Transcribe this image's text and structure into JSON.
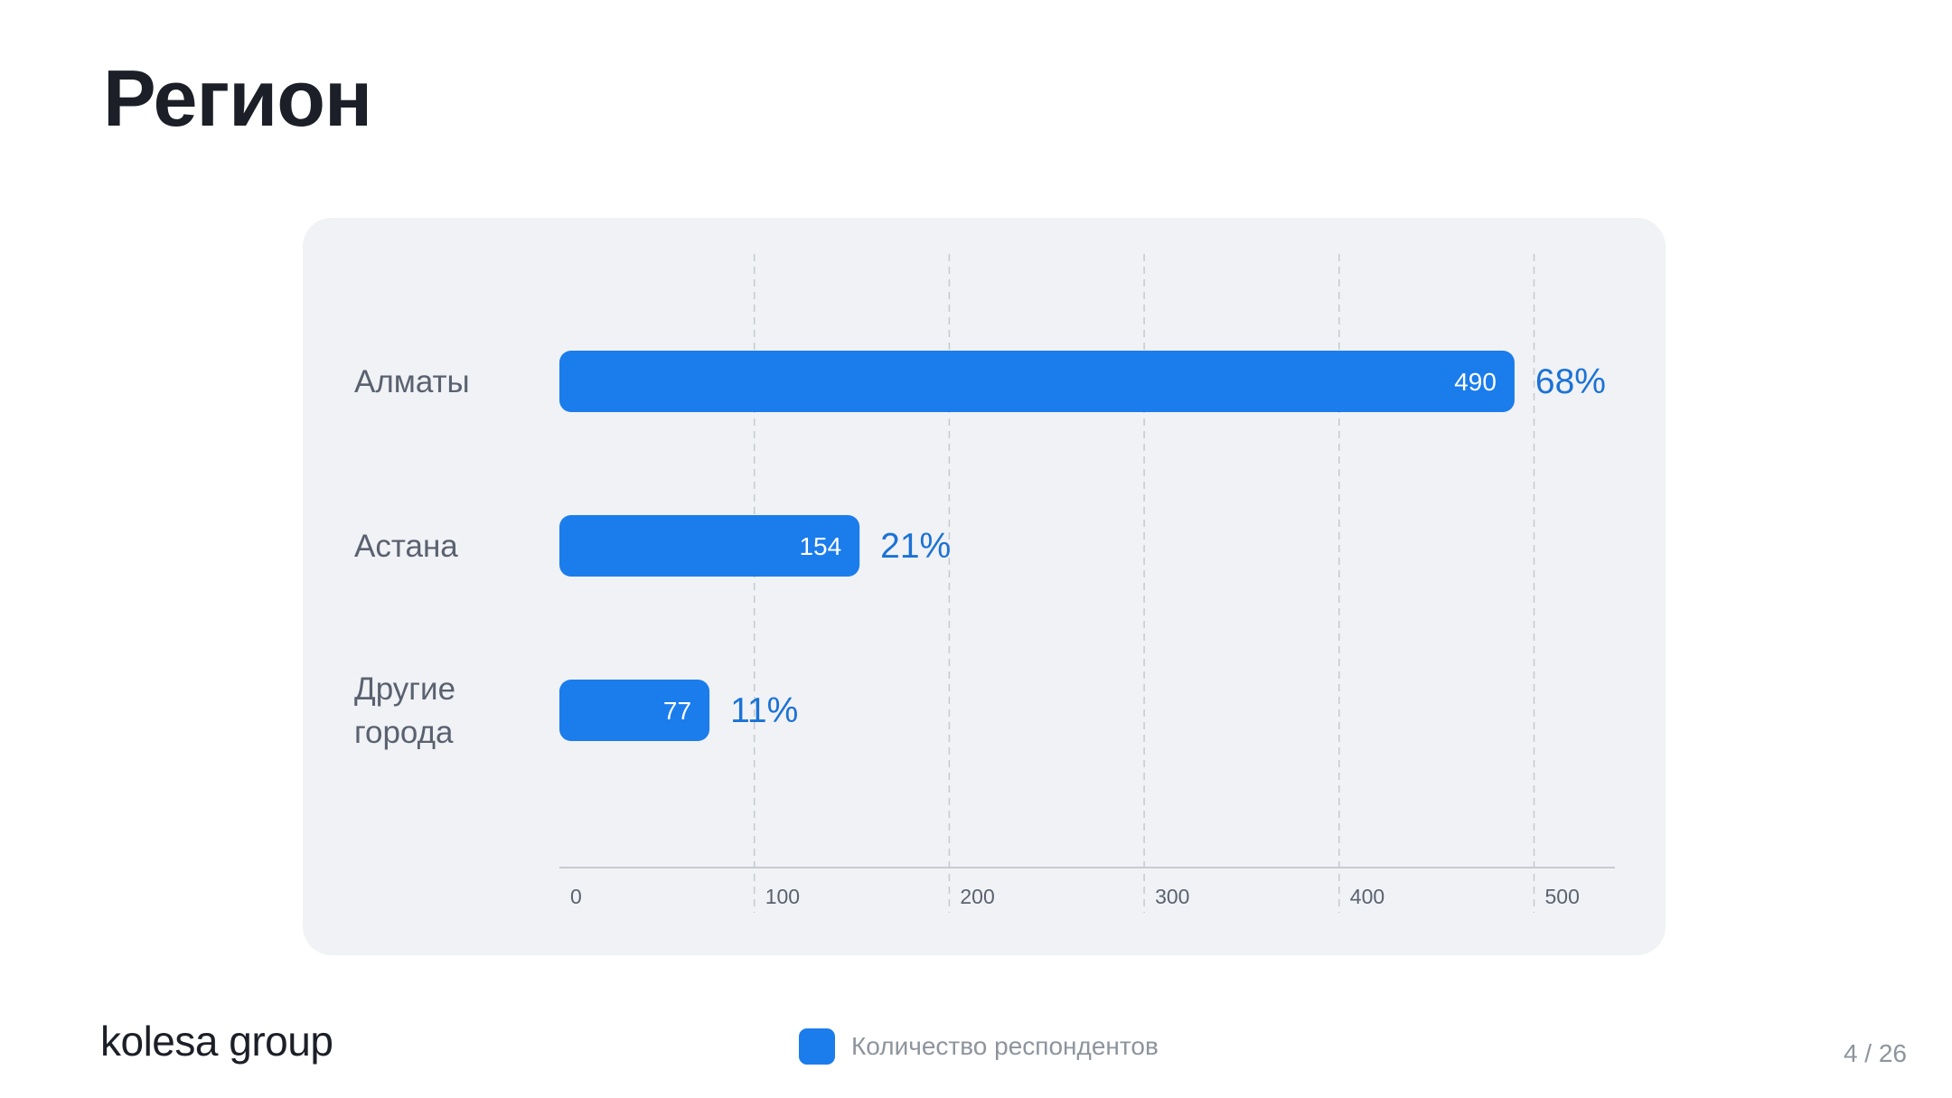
{
  "slide": {
    "title": "Регион",
    "logo_text": "kolesa group",
    "page_counter": "4 / 26"
  },
  "colors": {
    "bar": "#1b7cec",
    "percent": "#1b72d6",
    "card_background": "#f0f2f5",
    "gridline": "#c6c9cf",
    "axis": "#c8cbd1",
    "category_label": "#5a6170",
    "tick_label": "#5a6170"
  },
  "chart_data": {
    "type": "bar",
    "orientation": "horizontal",
    "categories": [
      "Алматы",
      "Астана",
      "Другие города"
    ],
    "category_lines": [
      [
        "Алматы"
      ],
      [
        "Астана"
      ],
      [
        "Другие",
        "города"
      ]
    ],
    "series": [
      {
        "name": "Количество респондентов",
        "values": [
          490,
          154,
          77
        ],
        "percent_labels": [
          "68%",
          "21%",
          "11%"
        ]
      }
    ],
    "x_ticks": [
      "0",
      "100",
      "200",
      "300",
      "400",
      "500"
    ],
    "xlim": [
      0,
      541
    ],
    "grid": "vertical dashed",
    "legend": "bottom-center"
  }
}
